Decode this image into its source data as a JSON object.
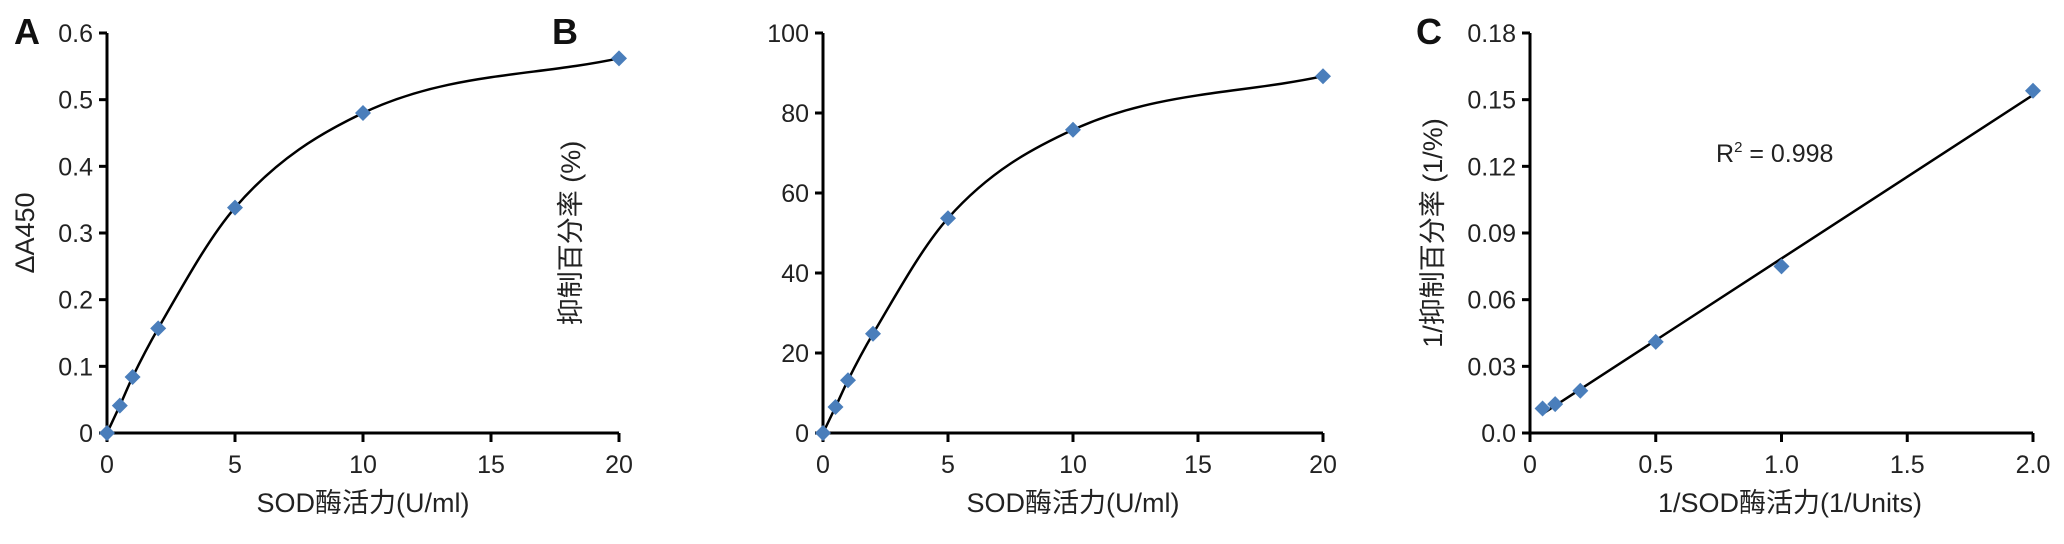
{
  "chart_data": [
    {
      "panel": "A",
      "type": "scatter",
      "title": "",
      "xlabel": "SOD酶活力(U/ml)",
      "ylabel": "ΔA450",
      "xlim": [
        0,
        20
      ],
      "ylim": [
        0,
        0.6
      ],
      "xticks": [
        0,
        5,
        10,
        15,
        20
      ],
      "yticks": [
        0,
        0.1,
        0.2,
        0.3,
        0.4,
        0.5,
        0.6
      ],
      "ytick_labels": [
        "0",
        "0.1",
        "0.2",
        "0.3",
        "0.4",
        "0.5",
        "0.6"
      ],
      "grid": false,
      "series": [
        {
          "name": "data",
          "marker": "diamond",
          "color": "#4a7ebb",
          "smooth_line": true,
          "x": [
            0,
            0.5,
            1,
            2,
            5,
            10,
            20
          ],
          "y": [
            0,
            0.041,
            0.084,
            0.157,
            0.338,
            0.48,
            0.562
          ]
        }
      ]
    },
    {
      "panel": "B",
      "type": "scatter",
      "title": "",
      "xlabel": "SOD酶活力(U/ml)",
      "ylabel": "抑制百分率 (%)",
      "xlim": [
        0,
        20
      ],
      "ylim": [
        0,
        100
      ],
      "xticks": [
        0,
        5,
        10,
        15,
        20
      ],
      "yticks": [
        0,
        20,
        40,
        60,
        80,
        100
      ],
      "grid": false,
      "series": [
        {
          "name": "data",
          "marker": "diamond",
          "color": "#4a7ebb",
          "smooth_line": true,
          "x": [
            0,
            0.5,
            1,
            2,
            5,
            10,
            20
          ],
          "y": [
            0,
            6.5,
            13.2,
            24.8,
            53.7,
            75.8,
            89.2
          ]
        }
      ]
    },
    {
      "panel": "C",
      "type": "scatter",
      "title": "",
      "xlabel": "1/SOD酶活力(1/Units)",
      "ylabel": "1/抑制百分率 (1/%)",
      "xlim": [
        0,
        2.0
      ],
      "ylim": [
        0,
        0.18
      ],
      "xticks": [
        0,
        0.5,
        1.0,
        1.5,
        2.0
      ],
      "xtick_labels": [
        "0",
        "0.5",
        "1.0",
        "1.5",
        "2.0"
      ],
      "yticks": [
        0,
        0.03,
        0.06,
        0.09,
        0.12,
        0.15,
        0.18
      ],
      "ytick_labels": [
        "0.0",
        "0.03",
        "0.06",
        "0.09",
        "0.12",
        "0.15",
        "0.18"
      ],
      "grid": false,
      "annotation": "R² = 0.998",
      "series": [
        {
          "name": "data",
          "marker": "diamond",
          "color": "#4a7ebb",
          "trendline": "linear",
          "x": [
            0.05,
            0.1,
            0.2,
            0.5,
            1.0,
            2.0
          ],
          "y": [
            0.011,
            0.013,
            0.019,
            0.041,
            0.075,
            0.154
          ]
        }
      ]
    }
  ],
  "panels": {
    "a": {
      "letter": "A",
      "xlabel": "SOD酶活力(U/ml)",
      "ylabel": "ΔA450"
    },
    "b": {
      "letter": "B",
      "xlabel": "SOD酶活力(U/ml)",
      "ylabel": "抑制百分率 (%)"
    },
    "c": {
      "letter": "C",
      "xlabel": "1/SOD酶活力(1/Units)",
      "ylabel": "1/抑制百分率 (1/%)",
      "annotation_base": "R",
      "annotation_sup": "2",
      "annotation_rest": " = 0.998"
    }
  },
  "colors": {
    "marker": "#4a7ebb",
    "line": "#000000",
    "axis": "#000000"
  }
}
